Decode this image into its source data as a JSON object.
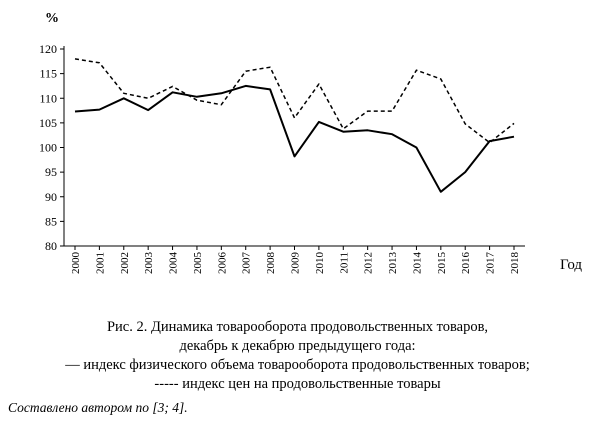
{
  "chart_data": {
    "type": "line",
    "ylabel": "%",
    "xlabel": "Год",
    "ylim": [
      80,
      120
    ],
    "yticks": [
      80,
      85,
      90,
      95,
      100,
      105,
      110,
      115,
      120
    ],
    "x": [
      "2000",
      "2001",
      "2002",
      "2003",
      "2004",
      "2005",
      "2006",
      "2007",
      "2008",
      "2009",
      "2010",
      "2011",
      "2012",
      "2013",
      "2014",
      "2015",
      "2016",
      "2017",
      "2018"
    ],
    "series": [
      {
        "values": [
          107.3,
          107.7,
          110.0,
          107.6,
          111.2,
          110.3,
          111.0,
          112.5,
          111.8,
          98.2,
          105.2,
          103.2,
          103.5,
          102.7,
          100.0,
          91.0,
          95.0,
          101.3,
          102.2
        ],
        "style": "solid",
        "color": "#000000"
      },
      {
        "values": [
          118.0,
          117.2,
          111.0,
          110.0,
          112.4,
          109.6,
          108.7,
          115.5,
          116.3,
          106.0,
          112.9,
          103.8,
          107.4,
          107.4,
          115.7,
          113.9,
          104.8,
          101.0,
          104.9
        ],
        "style": "dashed",
        "color": "#000000"
      }
    ],
    "grid": false,
    "legend": "caption below chart"
  },
  "caption": {
    "line1": "Рис. 2. Динамика товарооборота продовольственных товаров,",
    "line2": "декабрь к декабрю предыдущего года:",
    "line3": "— индекс физического объема товарооборота продовольственных товаров;",
    "line4": "----- индекс цен на продовольственные товары"
  },
  "source": "Составлено автором по [3; 4]."
}
